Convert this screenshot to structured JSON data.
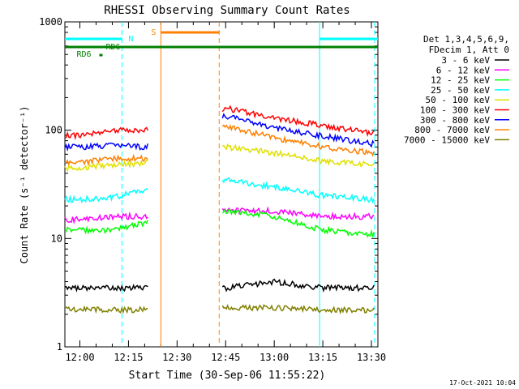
{
  "chart_data": {
    "type": "line",
    "title": "RHESSI Observing Summary Count Rates",
    "xlabel": "Start Time (30-Sep-06 11:55:22)",
    "ylabel": "Count Rate (s⁻¹ detector⁻¹)",
    "yscale": "log",
    "ylim": [
      1,
      1000
    ],
    "xlim": [
      "11:55:22",
      "13:32:00"
    ],
    "x_ticks": [
      "12:00",
      "12:15",
      "12:30",
      "12:45",
      "13:00",
      "13:15",
      "13:30"
    ],
    "y_ticks": [
      "1",
      "10",
      "100",
      "1000"
    ],
    "grid": false,
    "legend_position": "right",
    "legend_header": [
      "Det 1,3,4,5,6,9,",
      "FDecim 1, Att 0"
    ],
    "timestamp": "17-Oct-2021 10:04",
    "annotations": [
      {
        "label": "N",
        "color": "#00ffff"
      },
      {
        "label": "S",
        "color": "#ff8000"
      },
      {
        "label": "RD6",
        "color": "#008000"
      },
      {
        "label": "RD6",
        "color": "#008000"
      }
    ],
    "series": [
      {
        "name": "3 - 6 keV",
        "color": "#000000",
        "x": [
          "12:00",
          "12:10",
          "12:20",
          "12:45",
          "13:00",
          "13:15",
          "13:30"
        ],
        "values": [
          3.5,
          3.5,
          3.5,
          3.5,
          4.0,
          3.5,
          3.5
        ]
      },
      {
        "name": "6 - 12 keV",
        "color": "#ff00ff",
        "x": [
          "12:00",
          "12:10",
          "12:20",
          "12:45",
          "13:00",
          "13:15",
          "13:30"
        ],
        "values": [
          15,
          16,
          16,
          18,
          18,
          16,
          16
        ]
      },
      {
        "name": "12 - 25 keV",
        "color": "#00ff00",
        "x": [
          "12:00",
          "12:10",
          "12:20",
          "12:45",
          "13:00",
          "13:15",
          "13:30"
        ],
        "values": [
          12,
          12,
          14,
          18,
          16,
          12,
          11
        ]
      },
      {
        "name": "25 - 50 keV",
        "color": "#00ffff",
        "x": [
          "12:00",
          "12:10",
          "12:20",
          "12:45",
          "13:00",
          "13:15",
          "13:30"
        ],
        "values": [
          23,
          24,
          28,
          35,
          30,
          25,
          23
        ]
      },
      {
        "name": "50 - 100 keV",
        "color": "#e0e000",
        "x": [
          "12:00",
          "12:10",
          "12:20",
          "12:45",
          "13:00",
          "13:15",
          "13:30"
        ],
        "values": [
          45,
          48,
          50,
          70,
          62,
          52,
          48
        ]
      },
      {
        "name": "100 - 300 keV",
        "color": "#ff0000",
        "x": [
          "12:00",
          "12:10",
          "12:20",
          "12:45",
          "13:00",
          "13:15",
          "13:30"
        ],
        "values": [
          90,
          100,
          100,
          160,
          130,
          110,
          95
        ]
      },
      {
        "name": "300 - 800 keV",
        "color": "#0000ff",
        "x": [
          "12:00",
          "12:10",
          "12:20",
          "12:45",
          "13:00",
          "13:15",
          "13:30"
        ],
        "values": [
          70,
          72,
          70,
          135,
          105,
          88,
          75
        ]
      },
      {
        "name": "800 - 7000 keV",
        "color": "#ff8000",
        "x": [
          "12:00",
          "12:10",
          "12:20",
          "12:45",
          "13:00",
          "13:15",
          "13:30"
        ],
        "values": [
          50,
          55,
          55,
          110,
          85,
          70,
          62
        ]
      },
      {
        "name": "7000 - 15000 keV",
        "color": "#808000",
        "x": [
          "12:00",
          "12:10",
          "12:20",
          "12:45",
          "13:00",
          "13:15",
          "13:30"
        ],
        "values": [
          2.2,
          2.2,
          2.2,
          2.3,
          2.3,
          2.2,
          2.2
        ]
      }
    ]
  }
}
